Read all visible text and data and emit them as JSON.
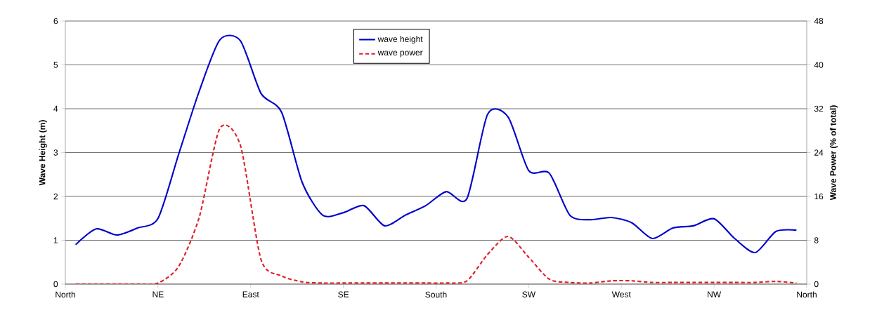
{
  "chart_data": {
    "type": "line",
    "ylabel": "Wave Height (m)",
    "y2label": "Wave Power (% of total)",
    "categories": [
      "North",
      null,
      null,
      null,
      null,
      null,
      null,
      null,
      null,
      "NE",
      null,
      null,
      null,
      null,
      null,
      null,
      null,
      null,
      "East",
      null,
      null,
      null,
      null,
      null,
      null,
      null,
      null,
      "SE",
      null,
      null,
      null,
      null,
      null,
      null,
      null,
      null,
      "South",
      null,
      null,
      null,
      null,
      null,
      null,
      null,
      null,
      "SW",
      null,
      null,
      null,
      null,
      null,
      null,
      null,
      null,
      "West",
      null,
      null,
      null,
      null,
      null,
      null,
      null,
      null,
      "NW",
      null,
      null,
      null,
      null,
      null,
      null,
      null,
      null,
      "North"
    ],
    "ylim": [
      0,
      6
    ],
    "yticks": [
      0,
      1,
      2,
      3,
      4,
      5,
      6
    ],
    "y2lim": [
      0,
      48
    ],
    "y2ticks": [
      0,
      8,
      16,
      24,
      32,
      40,
      48
    ],
    "grid": "y",
    "legend": "top",
    "series": [
      {
        "name": "wave height",
        "color": "#0000cc",
        "line_style": "solid",
        "values": [
          null,
          0.9,
          null,
          1.26,
          null,
          1.12,
          null,
          1.28,
          null,
          1.5,
          null,
          2.96,
          null,
          4.4,
          null,
          5.57,
          null,
          5.55,
          null,
          4.35,
          null,
          3.92,
          null,
          2.32,
          null,
          1.57,
          null,
          1.63,
          null,
          1.79,
          null,
          1.33,
          null,
          1.57,
          null,
          1.79,
          null,
          2.11,
          null,
          1.95,
          null,
          3.87,
          null,
          3.81,
          null,
          2.59,
          null,
          2.53,
          null,
          1.57,
          null,
          1.47,
          null,
          1.52,
          null,
          1.4,
          null,
          1.04,
          null,
          1.28,
          null,
          1.33,
          null,
          1.49,
          null,
          1.04,
          null,
          0.72,
          null,
          1.2,
          null,
          1.23,
          null
        ]
      },
      {
        "name": "wave power",
        "color": "#e0202a",
        "line_style": "dashed",
        "axis": "y2",
        "values": [
          null,
          0,
          null,
          0,
          null,
          0,
          null,
          0,
          null,
          0.2,
          null,
          3.2,
          null,
          12.2,
          null,
          28.4,
          null,
          25.3,
          null,
          4.5,
          null,
          1.5,
          null,
          0.4,
          null,
          0.2,
          null,
          0.2,
          null,
          0.2,
          null,
          0.2,
          null,
          0.2,
          null,
          0.2,
          null,
          0.2,
          null,
          0.6,
          null,
          5.4,
          null,
          8.7,
          null,
          4.9,
          null,
          0.9,
          null,
          0.3,
          null,
          0.2,
          null,
          0.6,
          null,
          0.6,
          null,
          0.3,
          null,
          0.3,
          null,
          0.3,
          null,
          0.3,
          null,
          0.3,
          null,
          0.3,
          null,
          0.5,
          null,
          0.2,
          null
        ]
      }
    ]
  }
}
